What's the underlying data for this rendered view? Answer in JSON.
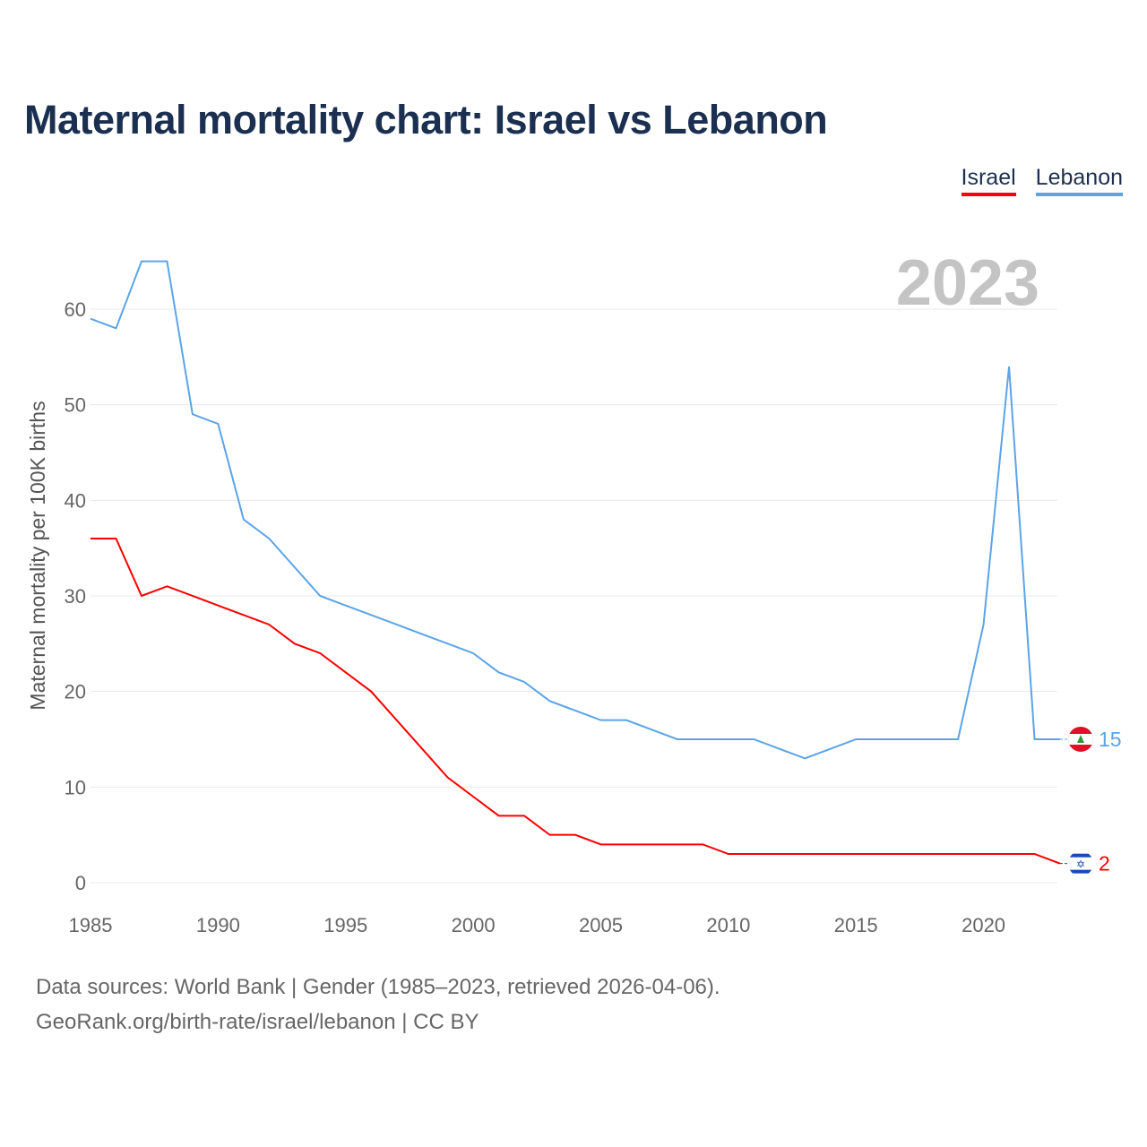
{
  "title": "Maternal mortality chart: Israel vs Lebanon",
  "year_label": "2023",
  "footer": {
    "line1": "Data sources: World Bank | Gender (1985–2023, retrieved 2026-04-06).",
    "line2": "GeoRank.org/birth-rate/israel/lebanon | CC BY"
  },
  "chart_data": {
    "type": "line",
    "title": "Maternal mortality chart: Israel vs Lebanon",
    "xlabel": "",
    "ylabel": "Maternal mortality per 100K births",
    "xlim": [
      1985,
      2023
    ],
    "ylim": [
      0,
      65
    ],
    "xticks": [
      1985,
      1990,
      1995,
      2000,
      2005,
      2010,
      2015,
      2020
    ],
    "yticks": [
      0,
      10,
      20,
      30,
      40,
      50,
      60
    ],
    "grid": true,
    "legend": "top-right",
    "x": [
      1985,
      1986,
      1987,
      1988,
      1989,
      1990,
      1991,
      1992,
      1993,
      1994,
      1995,
      1996,
      1997,
      1998,
      1999,
      2000,
      2001,
      2002,
      2003,
      2004,
      2005,
      2006,
      2007,
      2008,
      2009,
      2010,
      2011,
      2012,
      2013,
      2014,
      2015,
      2016,
      2017,
      2018,
      2019,
      2020,
      2021,
      2022,
      2023
    ],
    "series": [
      {
        "name": "Israel",
        "color": "#ff0000",
        "end_label": "2",
        "values": [
          36,
          36,
          30,
          31,
          30,
          29,
          28,
          27,
          25,
          24,
          22,
          20,
          17,
          14,
          11,
          9,
          7,
          7,
          5,
          5,
          4,
          4,
          4,
          4,
          4,
          3,
          3,
          3,
          3,
          3,
          3,
          3,
          3,
          3,
          3,
          3,
          3,
          3,
          2
        ]
      },
      {
        "name": "Lebanon",
        "color": "#5ba4e8",
        "end_label": "15",
        "values": [
          59,
          58,
          65,
          65,
          49,
          48,
          38,
          36,
          33,
          30,
          29,
          28,
          27,
          26,
          25,
          24,
          22,
          21,
          19,
          18,
          17,
          17,
          16,
          15,
          15,
          15,
          15,
          14,
          13,
          14,
          15,
          15,
          15,
          15,
          15,
          27,
          54,
          15,
          15
        ]
      }
    ]
  }
}
